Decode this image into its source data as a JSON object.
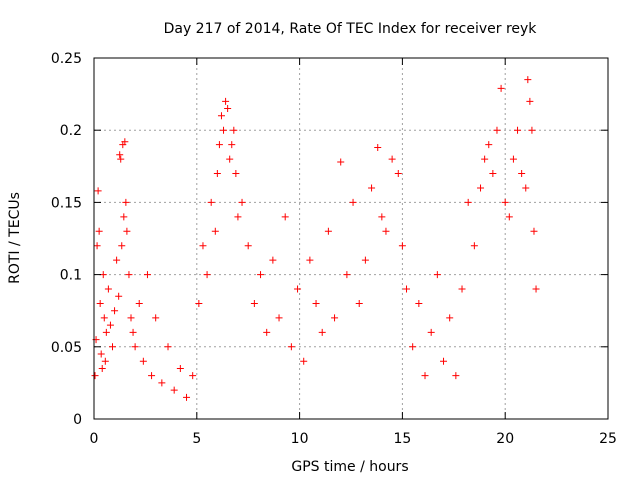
{
  "chart_data": {
    "type": "scatter",
    "title": "Day 217 of 2014, Rate Of TEC Index for receiver reyk",
    "xlabel": "GPS time / hours",
    "ylabel": "ROTI / TECUs",
    "xlim": [
      0,
      25
    ],
    "ylim": [
      0,
      0.25
    ],
    "xticks": [
      0,
      5,
      10,
      15,
      20,
      25
    ],
    "xtick_labels": [
      "0",
      "5",
      "10",
      "15",
      "20",
      "25"
    ],
    "yticks": [
      0,
      0.05,
      0.1,
      0.15,
      0.2,
      0.25
    ],
    "ytick_labels": [
      "0",
      "0.05",
      "0.1",
      "0.15",
      "0.2",
      "0.25"
    ],
    "grid": true,
    "marker": "+",
    "marker_color": "#ff0000",
    "series": [
      {
        "name": "ROTI",
        "points": [
          [
            0.05,
            0.03
          ],
          [
            0.1,
            0.055
          ],
          [
            0.15,
            0.12
          ],
          [
            0.2,
            0.158
          ],
          [
            0.25,
            0.13
          ],
          [
            0.3,
            0.08
          ],
          [
            0.35,
            0.045
          ],
          [
            0.4,
            0.035
          ],
          [
            0.45,
            0.1
          ],
          [
            0.5,
            0.07
          ],
          [
            0.55,
            0.04
          ],
          [
            0.6,
            0.06
          ],
          [
            0.7,
            0.09
          ],
          [
            0.8,
            0.065
          ],
          [
            0.9,
            0.05
          ],
          [
            1.0,
            0.075
          ],
          [
            1.1,
            0.11
          ],
          [
            1.2,
            0.085
          ],
          [
            1.25,
            0.183
          ],
          [
            1.3,
            0.18
          ],
          [
            1.35,
            0.12
          ],
          [
            1.4,
            0.19
          ],
          [
            1.45,
            0.14
          ],
          [
            1.5,
            0.192
          ],
          [
            1.55,
            0.15
          ],
          [
            1.6,
            0.13
          ],
          [
            1.7,
            0.1
          ],
          [
            1.8,
            0.07
          ],
          [
            1.9,
            0.06
          ],
          [
            2.0,
            0.05
          ],
          [
            2.2,
            0.08
          ],
          [
            2.4,
            0.04
          ],
          [
            2.6,
            0.1
          ],
          [
            2.8,
            0.03
          ],
          [
            3.0,
            0.07
          ],
          [
            3.3,
            0.025
          ],
          [
            3.6,
            0.05
          ],
          [
            3.9,
            0.02
          ],
          [
            4.2,
            0.035
          ],
          [
            4.5,
            0.015
          ],
          [
            4.8,
            0.03
          ],
          [
            5.1,
            0.08
          ],
          [
            5.3,
            0.12
          ],
          [
            5.5,
            0.1
          ],
          [
            5.7,
            0.15
          ],
          [
            5.9,
            0.13
          ],
          [
            6.0,
            0.17
          ],
          [
            6.1,
            0.19
          ],
          [
            6.2,
            0.21
          ],
          [
            6.3,
            0.2
          ],
          [
            6.4,
            0.22
          ],
          [
            6.5,
            0.215
          ],
          [
            6.6,
            0.18
          ],
          [
            6.7,
            0.19
          ],
          [
            6.8,
            0.2
          ],
          [
            6.9,
            0.17
          ],
          [
            7.0,
            0.14
          ],
          [
            7.2,
            0.15
          ],
          [
            7.5,
            0.12
          ],
          [
            7.8,
            0.08
          ],
          [
            8.1,
            0.1
          ],
          [
            8.4,
            0.06
          ],
          [
            8.7,
            0.11
          ],
          [
            9.0,
            0.07
          ],
          [
            9.3,
            0.14
          ],
          [
            9.6,
            0.05
          ],
          [
            9.9,
            0.09
          ],
          [
            10.2,
            0.04
          ],
          [
            10.5,
            0.11
          ],
          [
            10.8,
            0.08
          ],
          [
            11.1,
            0.06
          ],
          [
            11.4,
            0.13
          ],
          [
            11.7,
            0.07
          ],
          [
            12.0,
            0.178
          ],
          [
            12.3,
            0.1
          ],
          [
            12.6,
            0.15
          ],
          [
            12.9,
            0.08
          ],
          [
            13.2,
            0.11
          ],
          [
            13.5,
            0.16
          ],
          [
            13.8,
            0.188
          ],
          [
            14.0,
            0.14
          ],
          [
            14.2,
            0.13
          ],
          [
            14.5,
            0.18
          ],
          [
            14.8,
            0.17
          ],
          [
            15.0,
            0.12
          ],
          [
            15.2,
            0.09
          ],
          [
            15.5,
            0.05
          ],
          [
            15.8,
            0.08
          ],
          [
            16.1,
            0.03
          ],
          [
            16.4,
            0.06
          ],
          [
            16.7,
            0.1
          ],
          [
            17.0,
            0.04
          ],
          [
            17.3,
            0.07
          ],
          [
            17.6,
            0.03
          ],
          [
            17.9,
            0.09
          ],
          [
            18.2,
            0.15
          ],
          [
            18.5,
            0.12
          ],
          [
            18.8,
            0.16
          ],
          [
            19.0,
            0.18
          ],
          [
            19.2,
            0.19
          ],
          [
            19.4,
            0.17
          ],
          [
            19.6,
            0.2
          ],
          [
            19.8,
            0.229
          ],
          [
            20.0,
            0.15
          ],
          [
            20.2,
            0.14
          ],
          [
            20.4,
            0.18
          ],
          [
            20.6,
            0.2
          ],
          [
            20.8,
            0.17
          ],
          [
            21.0,
            0.16
          ],
          [
            21.1,
            0.235
          ],
          [
            21.2,
            0.22
          ],
          [
            21.3,
            0.2
          ],
          [
            21.4,
            0.13
          ],
          [
            21.5,
            0.09
          ]
        ]
      }
    ]
  }
}
